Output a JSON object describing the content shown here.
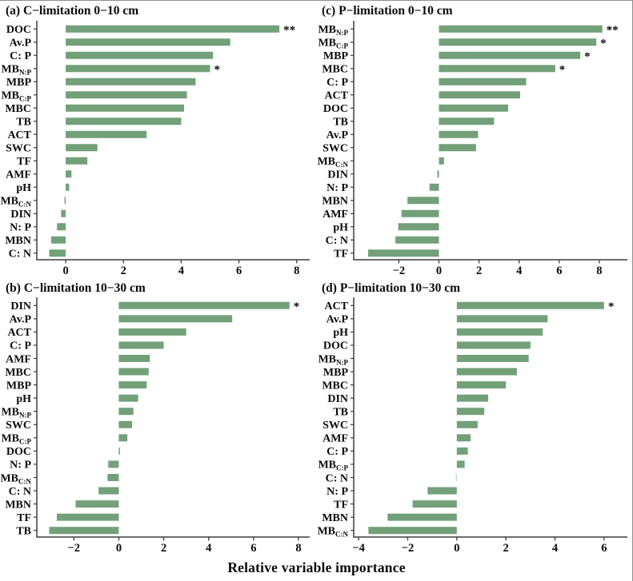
{
  "chart_data": {
    "type": "bar",
    "orientation": "horizontal",
    "xlabel": "Relative variable importance",
    "legend": "none",
    "grid": "off",
    "style": {
      "bar_color": "#72a079",
      "axis_color": "#3d3d3d",
      "text_color": "#0a0a0a",
      "border_color": "#8f8f8f",
      "background": "#ffffff"
    },
    "significance_note": {
      "single_asterisk": "*",
      "double_asterisk": "**"
    },
    "panels": [
      {
        "id": "a",
        "title": "(a) C−limitation 0−10 cm",
        "xlim": [
          -1.0,
          8.45
        ],
        "xticks": [
          0,
          2,
          4,
          6,
          8
        ],
        "rows": [
          {
            "label": "DOC",
            "value": 7.4,
            "sig": "**"
          },
          {
            "label": "Av.P",
            "value": 5.7,
            "sig": ""
          },
          {
            "label": "C: P",
            "value": 5.1,
            "sig": ""
          },
          {
            "label": "MB_{N:P}",
            "value": 5.0,
            "sig": "*"
          },
          {
            "label": "MBP",
            "value": 4.5,
            "sig": ""
          },
          {
            "label": "MB_{C:P}",
            "value": 4.2,
            "sig": ""
          },
          {
            "label": "MBC",
            "value": 4.1,
            "sig": ""
          },
          {
            "label": "TB",
            "value": 4.0,
            "sig": ""
          },
          {
            "label": "ACT",
            "value": 2.8,
            "sig": ""
          },
          {
            "label": "SWC",
            "value": 1.1,
            "sig": ""
          },
          {
            "label": "TF",
            "value": 0.75,
            "sig": ""
          },
          {
            "label": "AMF",
            "value": 0.2,
            "sig": ""
          },
          {
            "label": "pH",
            "value": 0.12,
            "sig": ""
          },
          {
            "label": "MB_{C:N}",
            "value": -0.04,
            "sig": ""
          },
          {
            "label": "DIN",
            "value": -0.16,
            "sig": ""
          },
          {
            "label": "N: P",
            "value": -0.3,
            "sig": ""
          },
          {
            "label": "MBN",
            "value": -0.5,
            "sig": ""
          },
          {
            "label": "C: N",
            "value": -0.57,
            "sig": ""
          }
        ]
      },
      {
        "id": "c",
        "title": "(c) P−limitation 0−10 cm",
        "xlim": [
          -4.25,
          9.4
        ],
        "xticks": [
          -2,
          0,
          2,
          4,
          6,
          8
        ],
        "rows": [
          {
            "label": "MB_{N:P}",
            "value": 8.15,
            "sig": "**"
          },
          {
            "label": "MB_{C:P}",
            "value": 7.85,
            "sig": "*"
          },
          {
            "label": "MBP",
            "value": 7.05,
            "sig": "*"
          },
          {
            "label": "MBC",
            "value": 5.8,
            "sig": "*"
          },
          {
            "label": "C: P",
            "value": 4.35,
            "sig": ""
          },
          {
            "label": "ACT",
            "value": 4.05,
            "sig": ""
          },
          {
            "label": "DOC",
            "value": 3.45,
            "sig": ""
          },
          {
            "label": "TB",
            "value": 2.75,
            "sig": ""
          },
          {
            "label": "Av.P",
            "value": 1.95,
            "sig": ""
          },
          {
            "label": "SWC",
            "value": 1.85,
            "sig": ""
          },
          {
            "label": "MB_{C:N}",
            "value": 0.25,
            "sig": ""
          },
          {
            "label": "DIN",
            "value": -0.08,
            "sig": ""
          },
          {
            "label": "N: P",
            "value": -0.47,
            "sig": ""
          },
          {
            "label": "MBN",
            "value": -1.57,
            "sig": ""
          },
          {
            "label": "AMF",
            "value": -1.87,
            "sig": ""
          },
          {
            "label": "pH",
            "value": -2.03,
            "sig": ""
          },
          {
            "label": "C: N",
            "value": -2.17,
            "sig": ""
          },
          {
            "label": "TF",
            "value": -3.53,
            "sig": ""
          }
        ]
      },
      {
        "id": "b",
        "title": "(b) C−limitation 10−30 cm",
        "xlim": [
          -3.65,
          8.5
        ],
        "xticks": [
          -2,
          0,
          2,
          4,
          6,
          8
        ],
        "rows": [
          {
            "label": "DIN",
            "value": 7.6,
            "sig": "*"
          },
          {
            "label": "Av.P",
            "value": 5.05,
            "sig": ""
          },
          {
            "label": "ACT",
            "value": 3.0,
            "sig": ""
          },
          {
            "label": "C: P",
            "value": 2.0,
            "sig": ""
          },
          {
            "label": "AMF",
            "value": 1.38,
            "sig": ""
          },
          {
            "label": "MBC",
            "value": 1.33,
            "sig": ""
          },
          {
            "label": "MBP",
            "value": 1.24,
            "sig": ""
          },
          {
            "label": "pH",
            "value": 0.86,
            "sig": ""
          },
          {
            "label": "MB_{N:P}",
            "value": 0.65,
            "sig": ""
          },
          {
            "label": "SWC",
            "value": 0.59,
            "sig": ""
          },
          {
            "label": "MB_{C:P}",
            "value": 0.38,
            "sig": ""
          },
          {
            "label": "DOC",
            "value": 0.05,
            "sig": ""
          },
          {
            "label": "N: P",
            "value": -0.47,
            "sig": ""
          },
          {
            "label": "MB_{C:N}",
            "value": -0.5,
            "sig": ""
          },
          {
            "label": "C: N",
            "value": -0.9,
            "sig": ""
          },
          {
            "label": "MBN",
            "value": -1.92,
            "sig": ""
          },
          {
            "label": "TF",
            "value": -2.76,
            "sig": ""
          },
          {
            "label": "TB",
            "value": -3.1,
            "sig": ""
          }
        ]
      },
      {
        "id": "d",
        "title": "(d) P−limitation 10−30 cm",
        "xlim": [
          -4.2,
          6.95
        ],
        "xticks": [
          -4,
          -2,
          0,
          2,
          4,
          6
        ],
        "rows": [
          {
            "label": "ACT",
            "value": 6.0,
            "sig": "*"
          },
          {
            "label": "Av.P",
            "value": 3.7,
            "sig": ""
          },
          {
            "label": "pH",
            "value": 3.5,
            "sig": ""
          },
          {
            "label": "DOC",
            "value": 3.0,
            "sig": ""
          },
          {
            "label": "MB_{N:P}",
            "value": 2.93,
            "sig": ""
          },
          {
            "label": "MBP",
            "value": 2.45,
            "sig": ""
          },
          {
            "label": "MBC",
            "value": 2.0,
            "sig": ""
          },
          {
            "label": "DIN",
            "value": 1.28,
            "sig": ""
          },
          {
            "label": "TB",
            "value": 1.12,
            "sig": ""
          },
          {
            "label": "SWC",
            "value": 0.85,
            "sig": ""
          },
          {
            "label": "AMF",
            "value": 0.56,
            "sig": ""
          },
          {
            "label": "C: P",
            "value": 0.45,
            "sig": ""
          },
          {
            "label": "MB_{C:P}",
            "value": 0.32,
            "sig": ""
          },
          {
            "label": "C: N",
            "value": -0.04,
            "sig": ""
          },
          {
            "label": "N: P",
            "value": -1.19,
            "sig": ""
          },
          {
            "label": "TF",
            "value": -1.8,
            "sig": ""
          },
          {
            "label": "MBN",
            "value": -2.82,
            "sig": ""
          },
          {
            "label": "MB_{C:N}",
            "value": -3.6,
            "sig": ""
          }
        ]
      }
    ]
  }
}
